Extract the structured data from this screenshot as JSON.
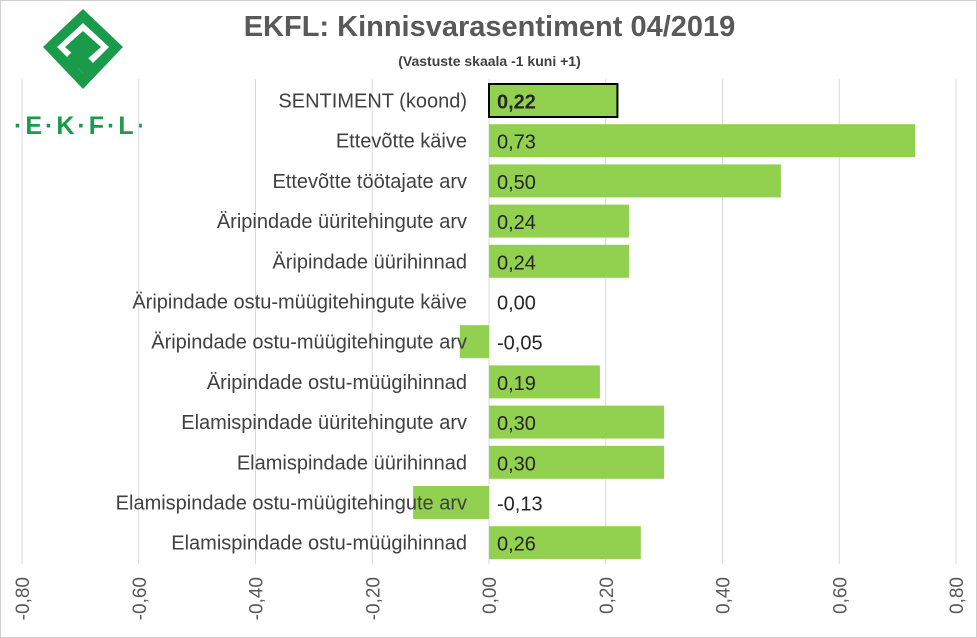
{
  "logo": {
    "icon": "ekfl-logo-icon",
    "text": "·E·K·F·L·",
    "color": "#1a9b4b"
  },
  "chart_data": {
    "type": "bar",
    "orientation": "horizontal",
    "title": "EKFL: Kinnisvarasentiment 04/2019",
    "subtitle": "(Vastuste skaala -1 kuni +1)",
    "categories": [
      "SENTIMENT (koond)",
      "Ettevõtte käive",
      "Ettevõtte töötajate arv",
      "Äripindade üüritehingute arv",
      "Äripindade üürihinnad",
      "Äripindade ostu-müügitehingute käive",
      "Äripindade ostu-müügitehingute arv",
      "Äripindade ostu-müügihinnad",
      "Elamispindade üüritehingute arv",
      "Elamispindade üürihinnad",
      "Elamispindade ostu-müügitehingute arv",
      "Elamispindade ostu-müügihinnad"
    ],
    "values": [
      0.22,
      0.73,
      0.5,
      0.24,
      0.24,
      0.0,
      -0.05,
      0.19,
      0.3,
      0.3,
      -0.13,
      0.26
    ],
    "data_labels": [
      "0,22",
      "0,73",
      "0,50",
      "0,24",
      "0,24",
      "0,00",
      "-0,05",
      "0,19",
      "0,30",
      "0,30",
      "-0,13",
      "0,26"
    ],
    "highlight_index": 0,
    "xlim": [
      -0.8,
      0.8
    ],
    "xticks": [
      -0.8,
      -0.6,
      -0.4,
      -0.2,
      0.0,
      0.2,
      0.4,
      0.6,
      0.8
    ],
    "xtick_labels": [
      "-0,80",
      "-0,60",
      "-0,40",
      "-0,20",
      "0,00",
      "0,20",
      "0,40",
      "0,60",
      "0,80"
    ],
    "grid": true,
    "legend": "none",
    "bar_color": "#92d050",
    "grid_color": "#d9d9d9"
  }
}
